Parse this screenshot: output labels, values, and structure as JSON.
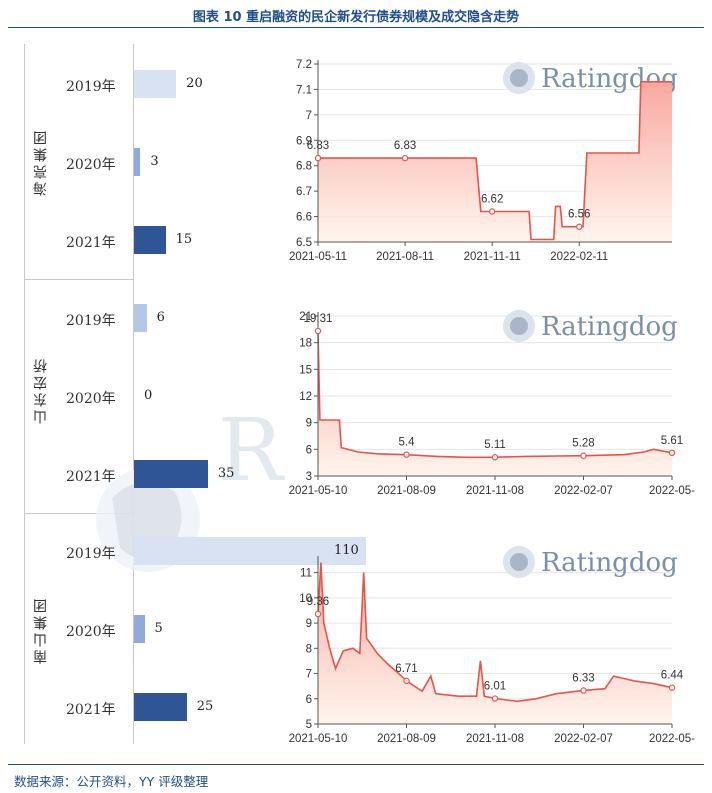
{
  "title": "图表 10 重启融资的民企新发行债券规模及成交隐含走势",
  "source": "数据来源：公开资料，YY 评级整理",
  "watermark": {
    "text": "Ratingdog",
    "big_letter": "R"
  },
  "colors": {
    "title": "#1f4e8c",
    "bar_2019": "#d9e2f3",
    "bar_2019_mid": "#b4c7e7",
    "bar_2020": "#8faadc",
    "bar_2021": "#2f5597",
    "line": "#e8534a"
  },
  "groups": [
    {
      "name": "海亮集团",
      "bars": [
        {
          "year": "2019年",
          "value": 20
        },
        {
          "year": "2020年",
          "value": 3
        },
        {
          "year": "2021年",
          "value": 15
        }
      ]
    },
    {
      "name": "山东宏桥",
      "bars": [
        {
          "year": "2019年",
          "value": 6
        },
        {
          "year": "2020年",
          "value": 0
        },
        {
          "year": "2021年",
          "value": 35
        }
      ]
    },
    {
      "name": "南山集团",
      "bars": [
        {
          "year": "2019年",
          "value": 110
        },
        {
          "year": "2020年",
          "value": 5
        },
        {
          "year": "2021年",
          "value": 25
        }
      ]
    }
  ],
  "chart_data": [
    {
      "type": "bar",
      "categories": [
        "2019年",
        "2020年",
        "2021年"
      ],
      "series": [
        {
          "name": "海亮集团",
          "values": [
            20,
            3,
            15
          ]
        },
        {
          "name": "山东宏桥",
          "values": [
            6,
            0,
            35
          ]
        },
        {
          "name": "南山集团",
          "values": [
            110,
            5,
            25
          ]
        }
      ]
    },
    {
      "type": "area",
      "x_ticks": [
        "2021-05-11",
        "2021-08-11",
        "2021-11-11",
        "2022-02-11"
      ],
      "y_ticks": [
        "6.5",
        "6.6",
        "6.7",
        "6.8",
        "6.9",
        "7",
        "7.1",
        "7.2"
      ],
      "ylim": [
        6.5,
        7.2
      ],
      "data_labels": [
        {
          "x": "2021-05-11",
          "text": "6.83",
          "value": 6.83
        },
        {
          "x": "2021-08-11",
          "text": "6.83",
          "value": 6.83
        },
        {
          "x": "2021-11-11",
          "text": "6.62",
          "value": 6.62
        },
        {
          "x": "2022-02-11",
          "text": "6.56",
          "value": 6.56
        }
      ],
      "series": [
        {
          "points": [
            [
              "2021-05-11",
              6.83
            ],
            [
              "2021-10-25",
              6.83
            ],
            [
              "2021-10-30",
              6.62
            ],
            [
              "2021-12-01",
              6.62
            ],
            [
              "2021-12-20",
              6.62
            ],
            [
              "2021-12-22",
              6.51
            ],
            [
              "2022-01-15",
              6.51
            ],
            [
              "2022-01-17",
              6.64
            ],
            [
              "2022-01-22",
              6.64
            ],
            [
              "2022-01-24",
              6.56
            ],
            [
              "2022-02-11",
              6.56
            ],
            [
              "2022-02-15",
              6.56
            ],
            [
              "2022-02-19",
              6.85
            ],
            [
              "2022-04-15",
              6.85
            ],
            [
              "2022-04-17",
              7.13
            ],
            [
              "2022-05-20",
              7.13
            ]
          ]
        }
      ]
    },
    {
      "type": "area",
      "x_ticks": [
        "2021-05-10",
        "2021-08-09",
        "2021-11-08",
        "2022-02-07",
        "2022-05-"
      ],
      "y_ticks": [
        "3",
        "6",
        "9",
        "12",
        "15",
        "18",
        "21"
      ],
      "ylim": [
        3,
        21
      ],
      "data_labels": [
        {
          "x": "2021-05-10",
          "text": "19.31",
          "value": 19.31
        },
        {
          "x": "2021-08-09",
          "text": "5.4",
          "value": 5.4
        },
        {
          "x": "2021-11-08",
          "text": "5.11",
          "value": 5.11
        },
        {
          "x": "2022-02-07",
          "text": "5.28",
          "value": 5.28
        },
        {
          "x": "2022-05-09",
          "text": "5.61",
          "value": 5.61
        }
      ],
      "series": [
        {
          "points": [
            [
              "2021-05-10",
              19.31
            ],
            [
              "2021-05-12",
              9.3
            ],
            [
              "2021-06-01",
              9.3
            ],
            [
              "2021-06-03",
              6.2
            ],
            [
              "2021-06-20",
              5.7
            ],
            [
              "2021-07-10",
              5.5
            ],
            [
              "2021-08-09",
              5.4
            ],
            [
              "2021-09-10",
              5.2
            ],
            [
              "2021-10-10",
              5.1
            ],
            [
              "2021-11-08",
              5.11
            ],
            [
              "2021-12-10",
              5.2
            ],
            [
              "2022-01-10",
              5.25
            ],
            [
              "2022-02-07",
              5.28
            ],
            [
              "2022-03-20",
              5.4
            ],
            [
              "2022-04-10",
              5.7
            ],
            [
              "2022-04-20",
              6.0
            ],
            [
              "2022-05-09",
              5.61
            ]
          ]
        }
      ]
    },
    {
      "type": "area",
      "x_ticks": [
        "2021-05-10",
        "2021-08-09",
        "2021-11-08",
        "2022-02-07",
        "2022-05-"
      ],
      "y_ticks": [
        "5",
        "6",
        "7",
        "8",
        "9",
        "10",
        "11"
      ],
      "ylim": [
        5,
        11.5
      ],
      "data_labels": [
        {
          "x": "2021-05-10",
          "text": "9.36",
          "value": 9.36
        },
        {
          "x": "2021-08-09",
          "text": "6.71",
          "value": 6.71
        },
        {
          "x": "2021-11-08",
          "text": "6.01",
          "value": 6.01
        },
        {
          "x": "2022-02-07",
          "text": "6.33",
          "value": 6.33
        },
        {
          "x": "2022-05-09",
          "text": "6.44",
          "value": 6.44
        }
      ],
      "series": [
        {
          "points": [
            [
              "2021-05-10",
              9.36
            ],
            [
              "2021-05-13",
              11.4
            ],
            [
              "2021-05-16",
              9.0
            ],
            [
              "2021-05-22",
              8.0
            ],
            [
              "2021-05-28",
              7.2
            ],
            [
              "2021-06-05",
              7.9
            ],
            [
              "2021-06-15",
              8.0
            ],
            [
              "2021-06-22",
              7.8
            ],
            [
              "2021-06-26",
              11.0
            ],
            [
              "2021-06-29",
              8.4
            ],
            [
              "2021-07-10",
              7.8
            ],
            [
              "2021-07-20",
              7.4
            ],
            [
              "2021-08-01",
              7.0
            ],
            [
              "2021-08-09",
              6.71
            ],
            [
              "2021-08-25",
              6.3
            ],
            [
              "2021-09-03",
              6.9
            ],
            [
              "2021-09-08",
              6.2
            ],
            [
              "2021-10-01",
              6.1
            ],
            [
              "2021-10-20",
              6.1
            ],
            [
              "2021-10-24",
              7.5
            ],
            [
              "2021-10-28",
              6.1
            ],
            [
              "2021-11-08",
              6.01
            ],
            [
              "2021-12-01",
              5.9
            ],
            [
              "2021-12-20",
              6.0
            ],
            [
              "2022-01-10",
              6.2
            ],
            [
              "2022-02-07",
              6.33
            ],
            [
              "2022-03-01",
              6.4
            ],
            [
              "2022-03-10",
              6.9
            ],
            [
              "2022-04-01",
              6.7
            ],
            [
              "2022-04-20",
              6.6
            ],
            [
              "2022-05-09",
              6.44
            ]
          ]
        }
      ]
    }
  ]
}
